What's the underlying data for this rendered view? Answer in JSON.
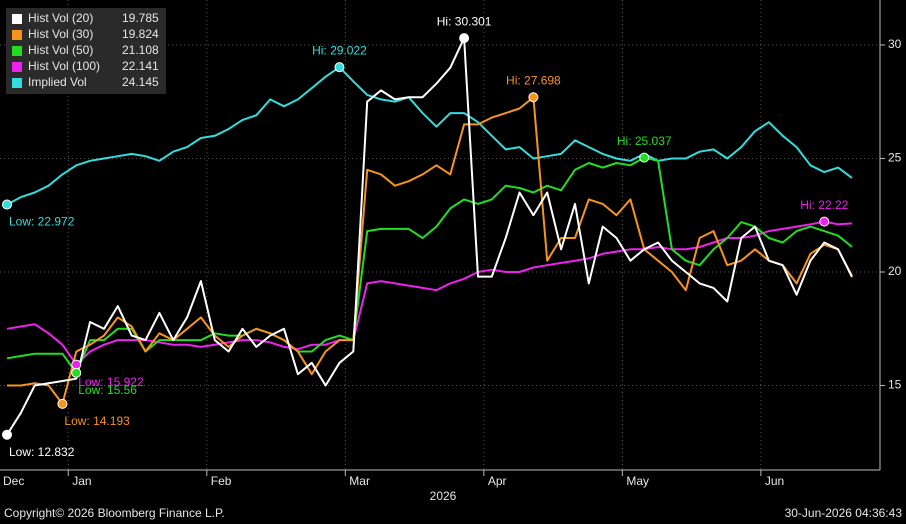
{
  "chart_data": {
    "type": "line",
    "categories": [
      "Dec",
      null,
      null,
      null,
      null,
      "Jan",
      null,
      null,
      null,
      null,
      null,
      null,
      null,
      null,
      null,
      "Feb",
      null,
      null,
      null,
      null,
      null,
      null,
      null,
      null,
      null,
      "Mar",
      null,
      null,
      null,
      null,
      null,
      null,
      null,
      null,
      null,
      "Apr",
      null,
      null,
      null,
      null,
      null,
      null,
      null,
      null,
      null,
      "May",
      null,
      null,
      null,
      null,
      null,
      null,
      null,
      null,
      null,
      "Jun",
      null,
      null,
      null,
      null,
      null,
      null
    ],
    "x_group_label": "2026",
    "ylim": [
      11.28,
      31.98
    ],
    "yticks": [
      15,
      20,
      25,
      30
    ],
    "grid": true,
    "legend": "top-left",
    "series": [
      {
        "name": "Hist Vol (20)",
        "color": "#ffffff",
        "values": [
          12.832,
          13.8,
          15.0,
          15.1,
          15.2,
          15.3,
          17.8,
          17.5,
          18.5,
          17.2,
          17.0,
          18.2,
          17.0,
          18.0,
          19.6,
          17.0,
          16.5,
          17.5,
          16.7,
          17.2,
          17.5,
          15.5,
          16.0,
          15.0,
          16.0,
          16.5,
          27.5,
          28.0,
          27.6,
          27.7,
          27.7,
          28.3,
          29.0,
          30.301,
          19.8,
          19.8,
          21.5,
          23.5,
          22.5,
          23.5,
          21.0,
          23.0,
          19.5,
          22.0,
          21.5,
          20.5,
          21.0,
          21.3,
          20.5,
          20.0,
          19.5,
          19.3,
          18.7,
          21.5,
          22.0,
          20.5,
          20.3,
          19.0,
          20.5,
          21.3,
          21.0,
          19.785
        ],
        "value_labels": [
          "Low: 12.832",
          null,
          null,
          null,
          null,
          null,
          null,
          null,
          null,
          null,
          null,
          null,
          null,
          null,
          null,
          null,
          null,
          null,
          null,
          null,
          null,
          null,
          null,
          null,
          null,
          null,
          null,
          null,
          null,
          null,
          null,
          null,
          null,
          "Hi: 30.301",
          null,
          null,
          null,
          null,
          null,
          null,
          null,
          null,
          null,
          null,
          null,
          null,
          null,
          null,
          null,
          null,
          null,
          null,
          null,
          null,
          null,
          null,
          null,
          null,
          null,
          null,
          null,
          null
        ]
      },
      {
        "name": "Hist Vol (30)",
        "color": "#f7941d",
        "values": [
          15.0,
          15.0,
          15.1,
          15.0,
          14.193,
          16.5,
          16.8,
          17.2,
          18.0,
          17.6,
          16.5,
          17.3,
          17.0,
          17.5,
          18.0,
          17.2,
          16.7,
          17.2,
          17.5,
          17.3,
          17.0,
          16.5,
          15.5,
          16.5,
          17.0,
          17.0,
          24.5,
          24.3,
          23.8,
          24.0,
          24.3,
          24.7,
          24.3,
          26.5,
          26.5,
          26.8,
          27.0,
          27.2,
          27.698,
          20.5,
          21.5,
          21.5,
          23.2,
          23.0,
          22.5,
          23.2,
          21.0,
          20.5,
          20.0,
          19.2,
          21.5,
          21.8,
          20.3,
          20.5,
          21.0,
          20.5,
          20.3,
          19.5,
          20.8,
          21.2,
          21.0,
          19.824
        ],
        "value_labels": [
          null,
          null,
          null,
          null,
          "Low: 14.193",
          null,
          null,
          null,
          null,
          null,
          null,
          null,
          null,
          null,
          null,
          null,
          null,
          null,
          null,
          null,
          null,
          null,
          null,
          null,
          null,
          null,
          null,
          null,
          null,
          null,
          null,
          null,
          null,
          null,
          null,
          null,
          null,
          null,
          "Hi: 27.698",
          null,
          null,
          null,
          null,
          null,
          null,
          null,
          null,
          null,
          null,
          null,
          null,
          null,
          null,
          null,
          null,
          null,
          null,
          null,
          null,
          null,
          null,
          null
        ]
      },
      {
        "name": "Hist Vol (50)",
        "color": "#22dd22",
        "values": [
          16.2,
          16.3,
          16.4,
          16.4,
          16.4,
          15.56,
          17.0,
          17.0,
          17.5,
          17.5,
          16.5,
          17.0,
          17.0,
          17.0,
          17.0,
          17.3,
          17.2,
          17.2,
          17.5,
          17.3,
          17.0,
          16.5,
          16.5,
          17.0,
          17.2,
          17.0,
          21.8,
          21.9,
          21.9,
          21.9,
          21.5,
          22.0,
          22.8,
          23.2,
          23.0,
          23.2,
          23.8,
          23.7,
          23.5,
          23.8,
          23.6,
          24.5,
          24.8,
          24.6,
          24.8,
          24.7,
          25.037,
          24.9,
          21.0,
          20.5,
          20.3,
          21.0,
          21.5,
          22.2,
          22.0,
          21.5,
          21.3,
          21.8,
          22.0,
          21.8,
          21.6,
          21.108
        ],
        "value_labels": [
          null,
          null,
          null,
          null,
          null,
          "Low: 15.56",
          null,
          null,
          null,
          null,
          null,
          null,
          null,
          null,
          null,
          null,
          null,
          null,
          null,
          null,
          null,
          null,
          null,
          null,
          null,
          null,
          null,
          null,
          null,
          null,
          null,
          null,
          null,
          null,
          null,
          null,
          null,
          null,
          null,
          null,
          null,
          null,
          null,
          null,
          null,
          null,
          "Hi: 25.037",
          null,
          null,
          null,
          null,
          null,
          null,
          null,
          null,
          null,
          null,
          null,
          null,
          null,
          null,
          null
        ]
      },
      {
        "name": "Hist Vol (100)",
        "color": "#ee22ee",
        "values": [
          17.5,
          17.6,
          17.7,
          17.3,
          16.8,
          15.922,
          16.5,
          16.8,
          17.0,
          17.0,
          17.0,
          16.9,
          16.8,
          16.8,
          16.7,
          16.8,
          16.9,
          17.0,
          17.0,
          16.9,
          16.7,
          16.6,
          16.8,
          16.8,
          17.0,
          17.0,
          19.5,
          19.6,
          19.5,
          19.4,
          19.3,
          19.2,
          19.5,
          19.7,
          20.0,
          20.1,
          20.0,
          20.0,
          20.2,
          20.3,
          20.4,
          20.5,
          20.6,
          20.8,
          20.9,
          21.0,
          21.0,
          21.1,
          21.0,
          21.0,
          21.1,
          21.3,
          21.5,
          21.5,
          21.6,
          21.8,
          21.9,
          22.0,
          22.1,
          22.22,
          22.1,
          22.141
        ],
        "value_labels": [
          null,
          null,
          null,
          null,
          null,
          "Low: 15.922",
          null,
          null,
          null,
          null,
          null,
          null,
          null,
          null,
          null,
          null,
          null,
          null,
          null,
          null,
          null,
          null,
          null,
          null,
          null,
          null,
          null,
          null,
          null,
          null,
          null,
          null,
          null,
          null,
          null,
          null,
          null,
          null,
          null,
          null,
          null,
          null,
          null,
          null,
          null,
          null,
          null,
          null,
          null,
          null,
          null,
          null,
          null,
          null,
          null,
          null,
          null,
          null,
          null,
          "Hi: 22.22",
          null,
          null
        ]
      },
      {
        "name": "Implied Vol",
        "color": "#33dddd",
        "values": [
          22.972,
          23.3,
          23.5,
          23.8,
          24.3,
          24.7,
          24.9,
          25.0,
          25.1,
          25.2,
          25.1,
          24.9,
          25.3,
          25.5,
          25.9,
          26.0,
          26.3,
          26.7,
          26.9,
          27.6,
          27.3,
          27.6,
          28.1,
          28.6,
          29.022,
          28.4,
          27.8,
          27.6,
          27.5,
          27.7,
          27.0,
          26.4,
          27.0,
          27.0,
          26.6,
          26.0,
          25.4,
          25.5,
          25.0,
          25.1,
          25.2,
          25.8,
          25.5,
          25.2,
          25.0,
          24.9,
          25.2,
          24.9,
          25.0,
          25.0,
          25.3,
          25.4,
          25.0,
          25.5,
          26.2,
          26.6,
          26.0,
          25.5,
          24.7,
          24.4,
          24.6,
          24.145
        ],
        "value_labels": [
          "Low: 22.972",
          null,
          null,
          null,
          null,
          null,
          null,
          null,
          null,
          null,
          null,
          null,
          null,
          null,
          null,
          null,
          null,
          null,
          null,
          null,
          null,
          null,
          null,
          null,
          "Hi: 29.022",
          null,
          null,
          null,
          null,
          null,
          null,
          null,
          null,
          null,
          null,
          null,
          null,
          null,
          null,
          null,
          null,
          null,
          null,
          null,
          null,
          null,
          null,
          null,
          null,
          null,
          null,
          null,
          null,
          null,
          null,
          null,
          null,
          null,
          null,
          null,
          null,
          null
        ]
      }
    ],
    "footer_left": "Copyright© 2026 Bloomberg Finance L.P.",
    "footer_right": "30-Jun-2026 04:36:43"
  }
}
